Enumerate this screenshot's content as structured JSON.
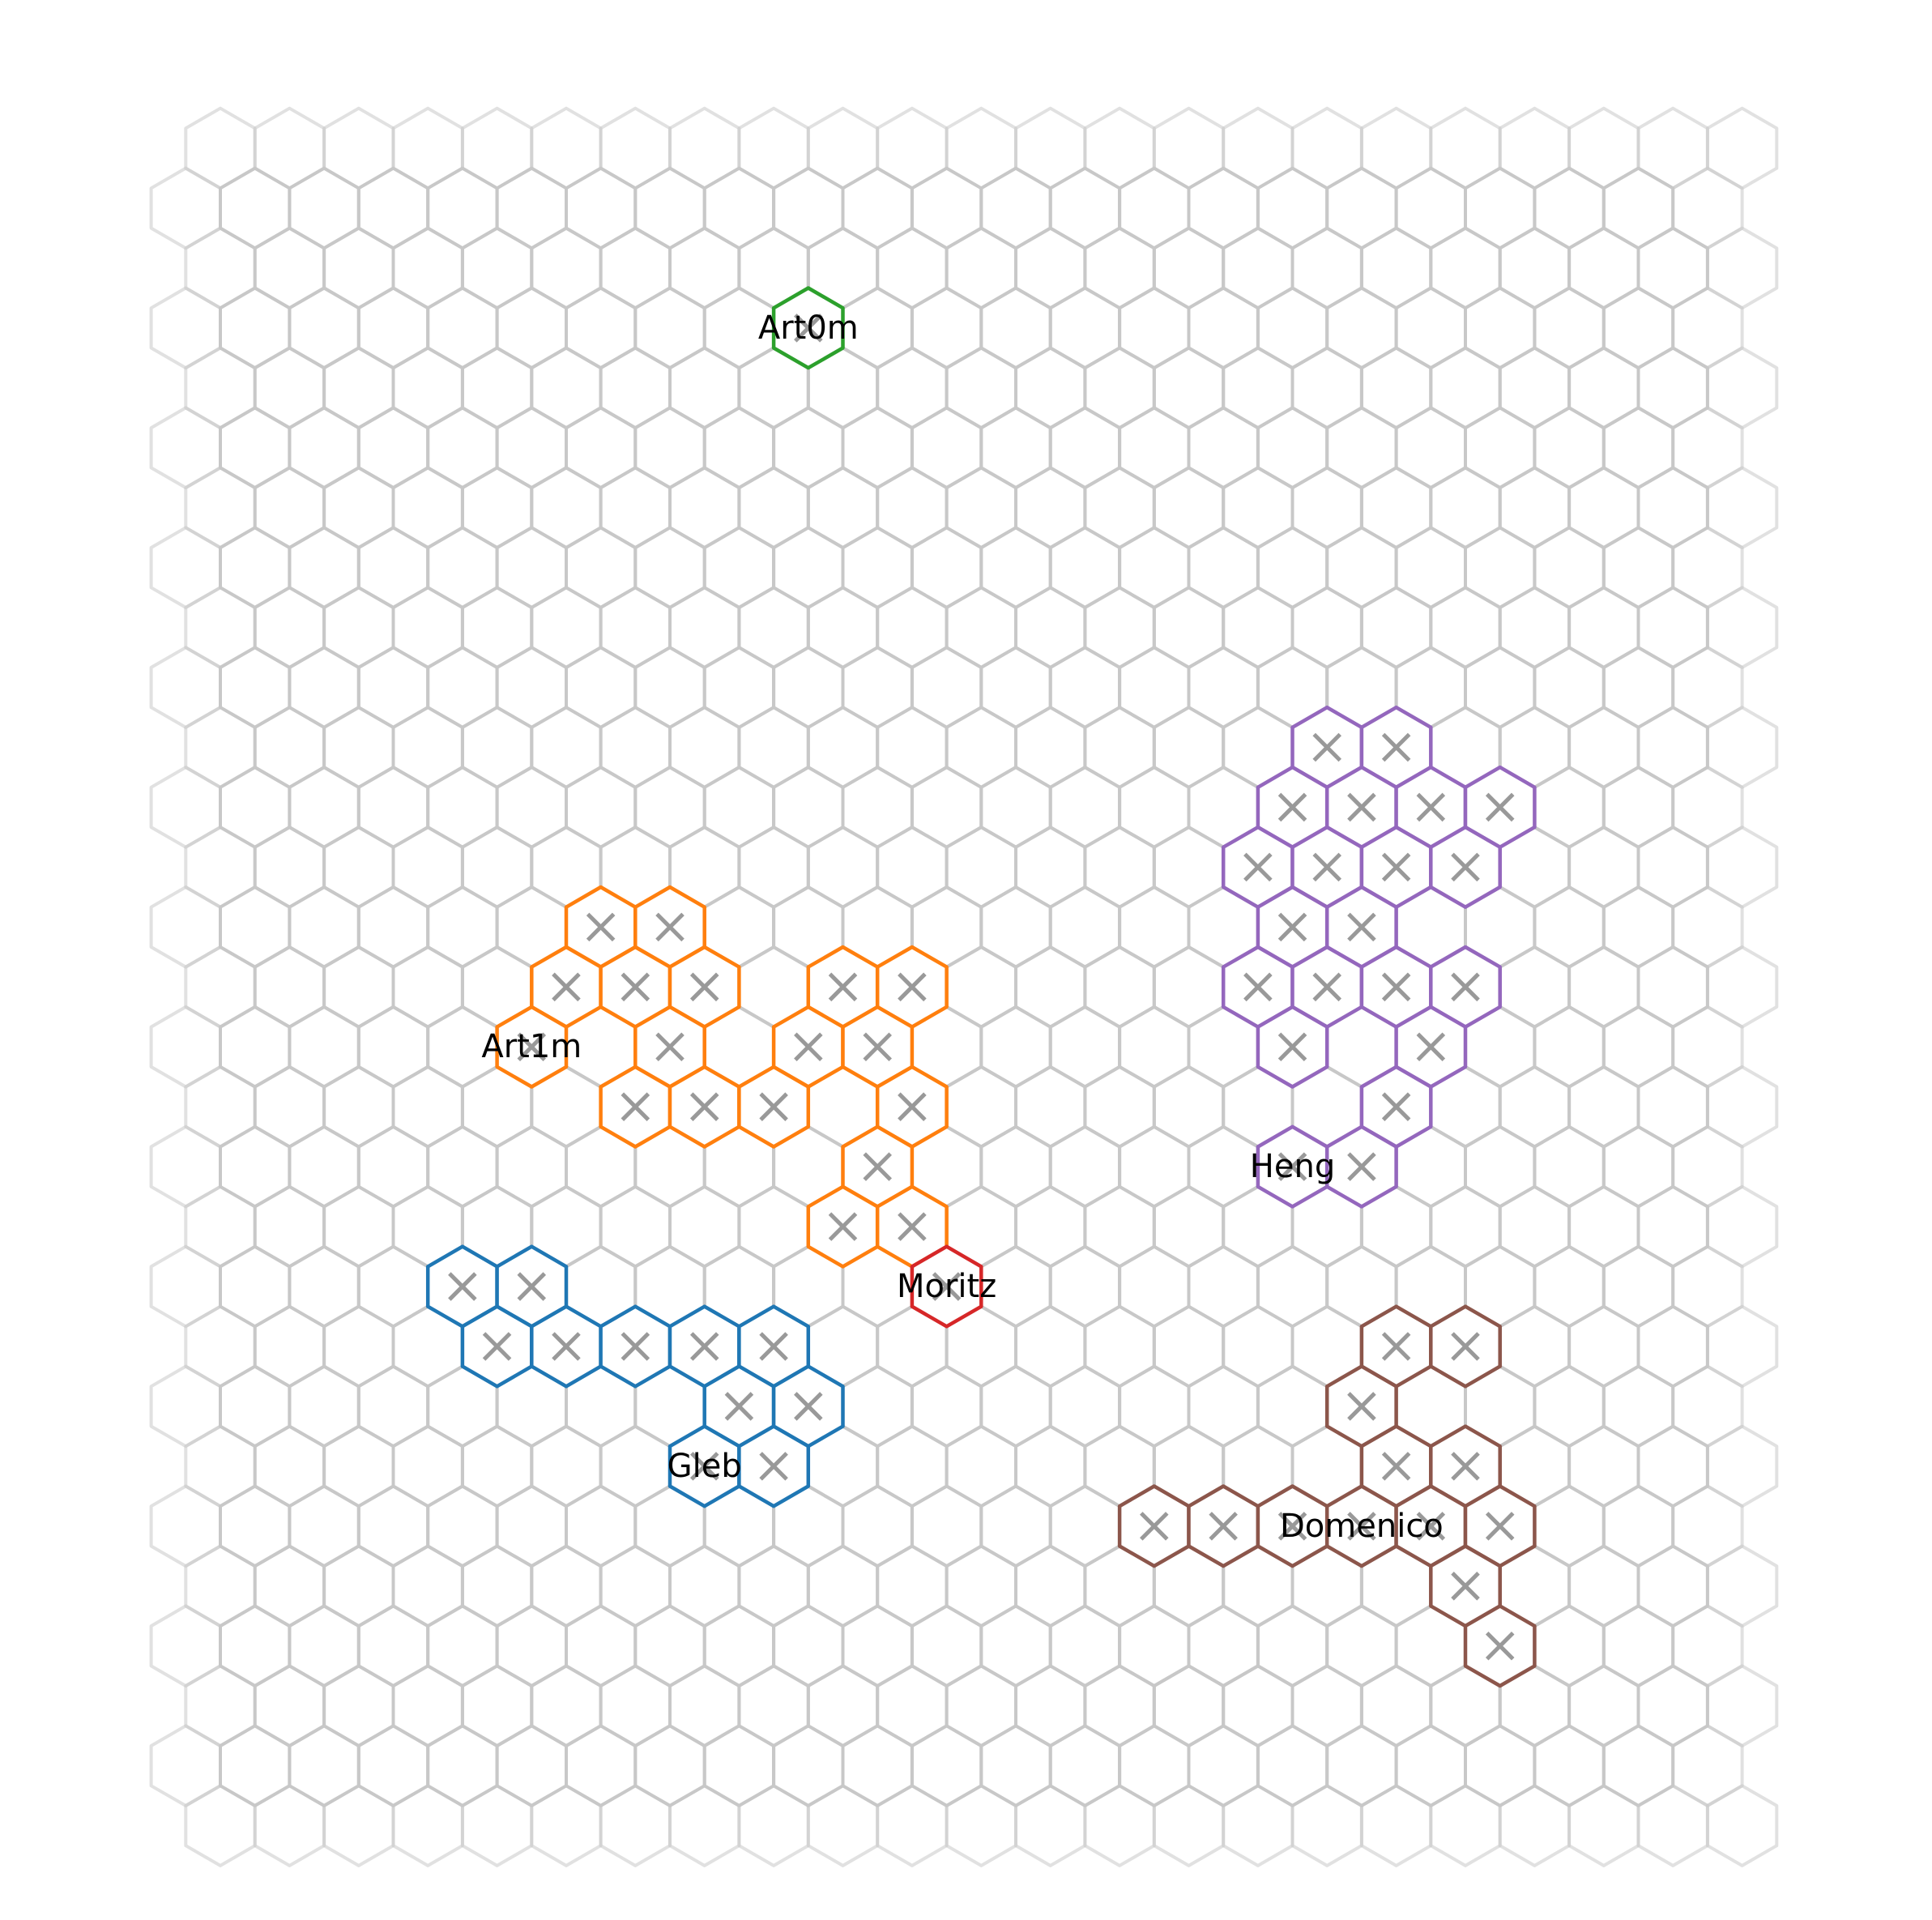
{
  "board": {
    "grid_columns": 23,
    "grid_rows": 29,
    "empty_cell_color": "#c8c8c8",
    "marker_color": "#999999",
    "marker_symbol": "x-mark"
  },
  "players": [
    {
      "name": "Art0m",
      "color": "#2ca02c",
      "label_cell": [
        9,
        3
      ],
      "cells": [
        [
          9,
          3
        ]
      ],
      "marked": [
        [
          9,
          3
        ]
      ]
    },
    {
      "name": "Art1m",
      "color": "#ff7f0e",
      "label_cell": [
        5,
        15
      ],
      "cells": [
        [
          6,
          13
        ],
        [
          7,
          13
        ],
        [
          5,
          14
        ],
        [
          6,
          14
        ],
        [
          7,
          14
        ],
        [
          9,
          14
        ],
        [
          10,
          14
        ],
        [
          5,
          15
        ],
        [
          7,
          15
        ],
        [
          9,
          15
        ],
        [
          10,
          15
        ],
        [
          6,
          16
        ],
        [
          7,
          16
        ],
        [
          8,
          16
        ],
        [
          10,
          16
        ],
        [
          10,
          17
        ],
        [
          9,
          18
        ],
        [
          10,
          18
        ]
      ],
      "marked": [
        [
          6,
          13
        ],
        [
          7,
          13
        ],
        [
          5,
          14
        ],
        [
          6,
          14
        ],
        [
          7,
          14
        ],
        [
          9,
          14
        ],
        [
          10,
          14
        ],
        [
          5,
          15
        ],
        [
          7,
          15
        ],
        [
          9,
          15
        ],
        [
          10,
          15
        ],
        [
          6,
          16
        ],
        [
          7,
          16
        ],
        [
          8,
          16
        ],
        [
          10,
          16
        ],
        [
          10,
          17
        ],
        [
          9,
          18
        ],
        [
          10,
          18
        ]
      ]
    },
    {
      "name": "Heng",
      "color": "#9467bd",
      "label_cell": [
        16,
        17
      ],
      "cells": [
        [
          16,
          10
        ],
        [
          17,
          10
        ],
        [
          16,
          11
        ],
        [
          17,
          11
        ],
        [
          18,
          11
        ],
        [
          19,
          11
        ],
        [
          15,
          12
        ],
        [
          16,
          12
        ],
        [
          17,
          12
        ],
        [
          18,
          12
        ],
        [
          16,
          13
        ],
        [
          17,
          13
        ],
        [
          15,
          14
        ],
        [
          16,
          14
        ],
        [
          17,
          14
        ],
        [
          18,
          14
        ],
        [
          16,
          15
        ],
        [
          18,
          15
        ],
        [
          17,
          16
        ],
        [
          16,
          17
        ],
        [
          17,
          17
        ]
      ],
      "marked": [
        [
          16,
          10
        ],
        [
          17,
          10
        ],
        [
          16,
          11
        ],
        [
          17,
          11
        ],
        [
          18,
          11
        ],
        [
          19,
          11
        ],
        [
          15,
          12
        ],
        [
          16,
          12
        ],
        [
          17,
          12
        ],
        [
          18,
          12
        ],
        [
          16,
          13
        ],
        [
          17,
          13
        ],
        [
          15,
          14
        ],
        [
          16,
          14
        ],
        [
          17,
          14
        ],
        [
          18,
          14
        ],
        [
          16,
          15
        ],
        [
          18,
          15
        ],
        [
          17,
          16
        ],
        [
          16,
          17
        ],
        [
          17,
          17
        ]
      ]
    },
    {
      "name": "Gleb",
      "color": "#1f77b4",
      "label_cell": [
        7,
        22
      ],
      "cells": [
        [
          4,
          19
        ],
        [
          5,
          19
        ],
        [
          4,
          20
        ],
        [
          5,
          20
        ],
        [
          6,
          20
        ],
        [
          7,
          20
        ],
        [
          8,
          20
        ],
        [
          8,
          21
        ],
        [
          9,
          21
        ],
        [
          7,
          22
        ],
        [
          8,
          22
        ]
      ],
      "marked": [
        [
          4,
          19
        ],
        [
          5,
          19
        ],
        [
          4,
          20
        ],
        [
          5,
          20
        ],
        [
          6,
          20
        ],
        [
          7,
          20
        ],
        [
          8,
          20
        ],
        [
          8,
          21
        ],
        [
          9,
          21
        ],
        [
          7,
          22
        ],
        [
          8,
          22
        ]
      ]
    },
    {
      "name": "Moritz",
      "color": "#d62728",
      "label_cell": [
        11,
        19
      ],
      "cells": [
        [
          11,
          19
        ]
      ],
      "marked": [
        [
          11,
          19
        ]
      ]
    },
    {
      "name": "Domenico",
      "color": "#8c564b",
      "label_cell": [
        17,
        23
      ],
      "cells": [
        [
          17,
          20
        ],
        [
          18,
          20
        ],
        [
          17,
          21
        ],
        [
          17,
          22
        ],
        [
          18,
          22
        ],
        [
          14,
          23
        ],
        [
          15,
          23
        ],
        [
          16,
          23
        ],
        [
          17,
          23
        ],
        [
          18,
          23
        ],
        [
          19,
          23
        ],
        [
          18,
          24
        ],
        [
          19,
          25
        ]
      ],
      "marked": [
        [
          17,
          20
        ],
        [
          18,
          20
        ],
        [
          17,
          21
        ],
        [
          17,
          22
        ],
        [
          18,
          22
        ],
        [
          14,
          23
        ],
        [
          15,
          23
        ],
        [
          16,
          23
        ],
        [
          17,
          23
        ],
        [
          18,
          23
        ],
        [
          19,
          23
        ],
        [
          18,
          24
        ],
        [
          19,
          25
        ]
      ]
    }
  ]
}
